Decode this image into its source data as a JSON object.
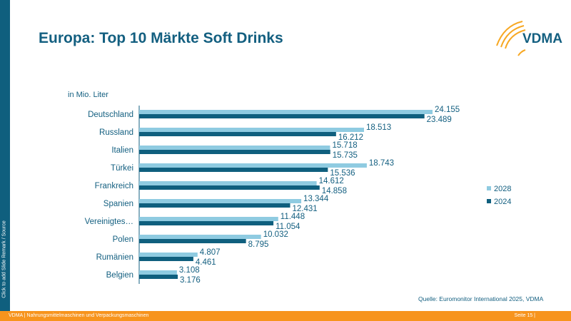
{
  "sidebar_text": "Click to add Slide Remark / Source",
  "title": "Europa: Top 10 Märkte Soft Drinks",
  "logo_text": "VDMA",
  "footer": {
    "left": "VDMA | Nahrungsmittelmaschinen und Verpackungsmaschinen",
    "right": "Seite 15 |"
  },
  "source": "Quelle: Euromonitor International 2025, VDMA",
  "colors": {
    "s2028": "#8fcbe1",
    "s2024": "#0f5f7e",
    "orange": "#f7941d"
  },
  "chart_data": {
    "type": "bar",
    "orientation": "horizontal",
    "ylabel": "in Mio. Liter",
    "categories": [
      "Deutschland",
      "Russland",
      "Italien",
      "Türkei",
      "Frankreich",
      "Spanien",
      "Vereinigtes…",
      "Polen",
      "Rumänien",
      "Belgien"
    ],
    "series": [
      {
        "name": "2028",
        "values": [
          24155,
          18513,
          15718,
          18743,
          14612,
          13344,
          11448,
          10032,
          4807,
          3108
        ],
        "labels": [
          "24.155",
          "18.513",
          "15.718",
          "18.743",
          "14.612",
          "13.344",
          "11.448",
          "10.032",
          "4.807",
          "3.108"
        ]
      },
      {
        "name": "2024",
        "values": [
          23489,
          16212,
          15735,
          15536,
          14858,
          12431,
          11054,
          8795,
          4461,
          3176
        ],
        "labels": [
          "23.489",
          "16.212",
          "15.735",
          "15.536",
          "14.858",
          "12.431",
          "11.054",
          "8.795",
          "4.461",
          "3.176"
        ]
      }
    ],
    "xlim": [
      0,
      24155
    ],
    "grid": false,
    "legend": "right"
  }
}
